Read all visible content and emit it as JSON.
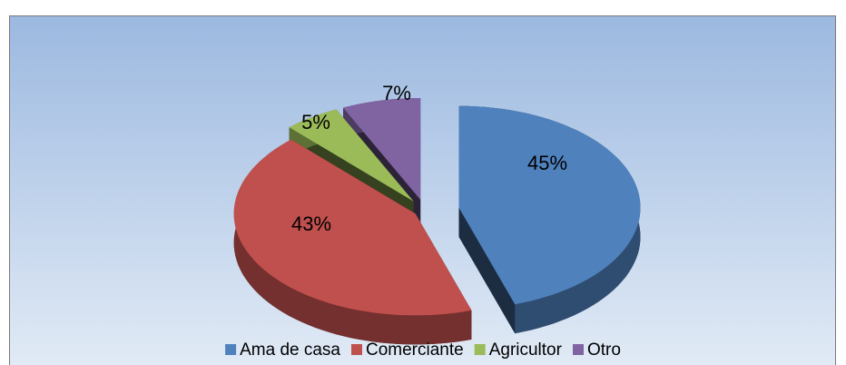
{
  "chart_data": {
    "type": "pie",
    "categories": [
      "Ama de casa",
      "Comerciante",
      "Agricultor",
      "Otro"
    ],
    "values": [
      45,
      43,
      5,
      7
    ],
    "value_labels": [
      "45%",
      "43%",
      "5%",
      "7%"
    ],
    "colors": [
      "#4f81bd",
      "#c0504d",
      "#9bbb59",
      "#8064a2"
    ],
    "legend": "bottom"
  }
}
